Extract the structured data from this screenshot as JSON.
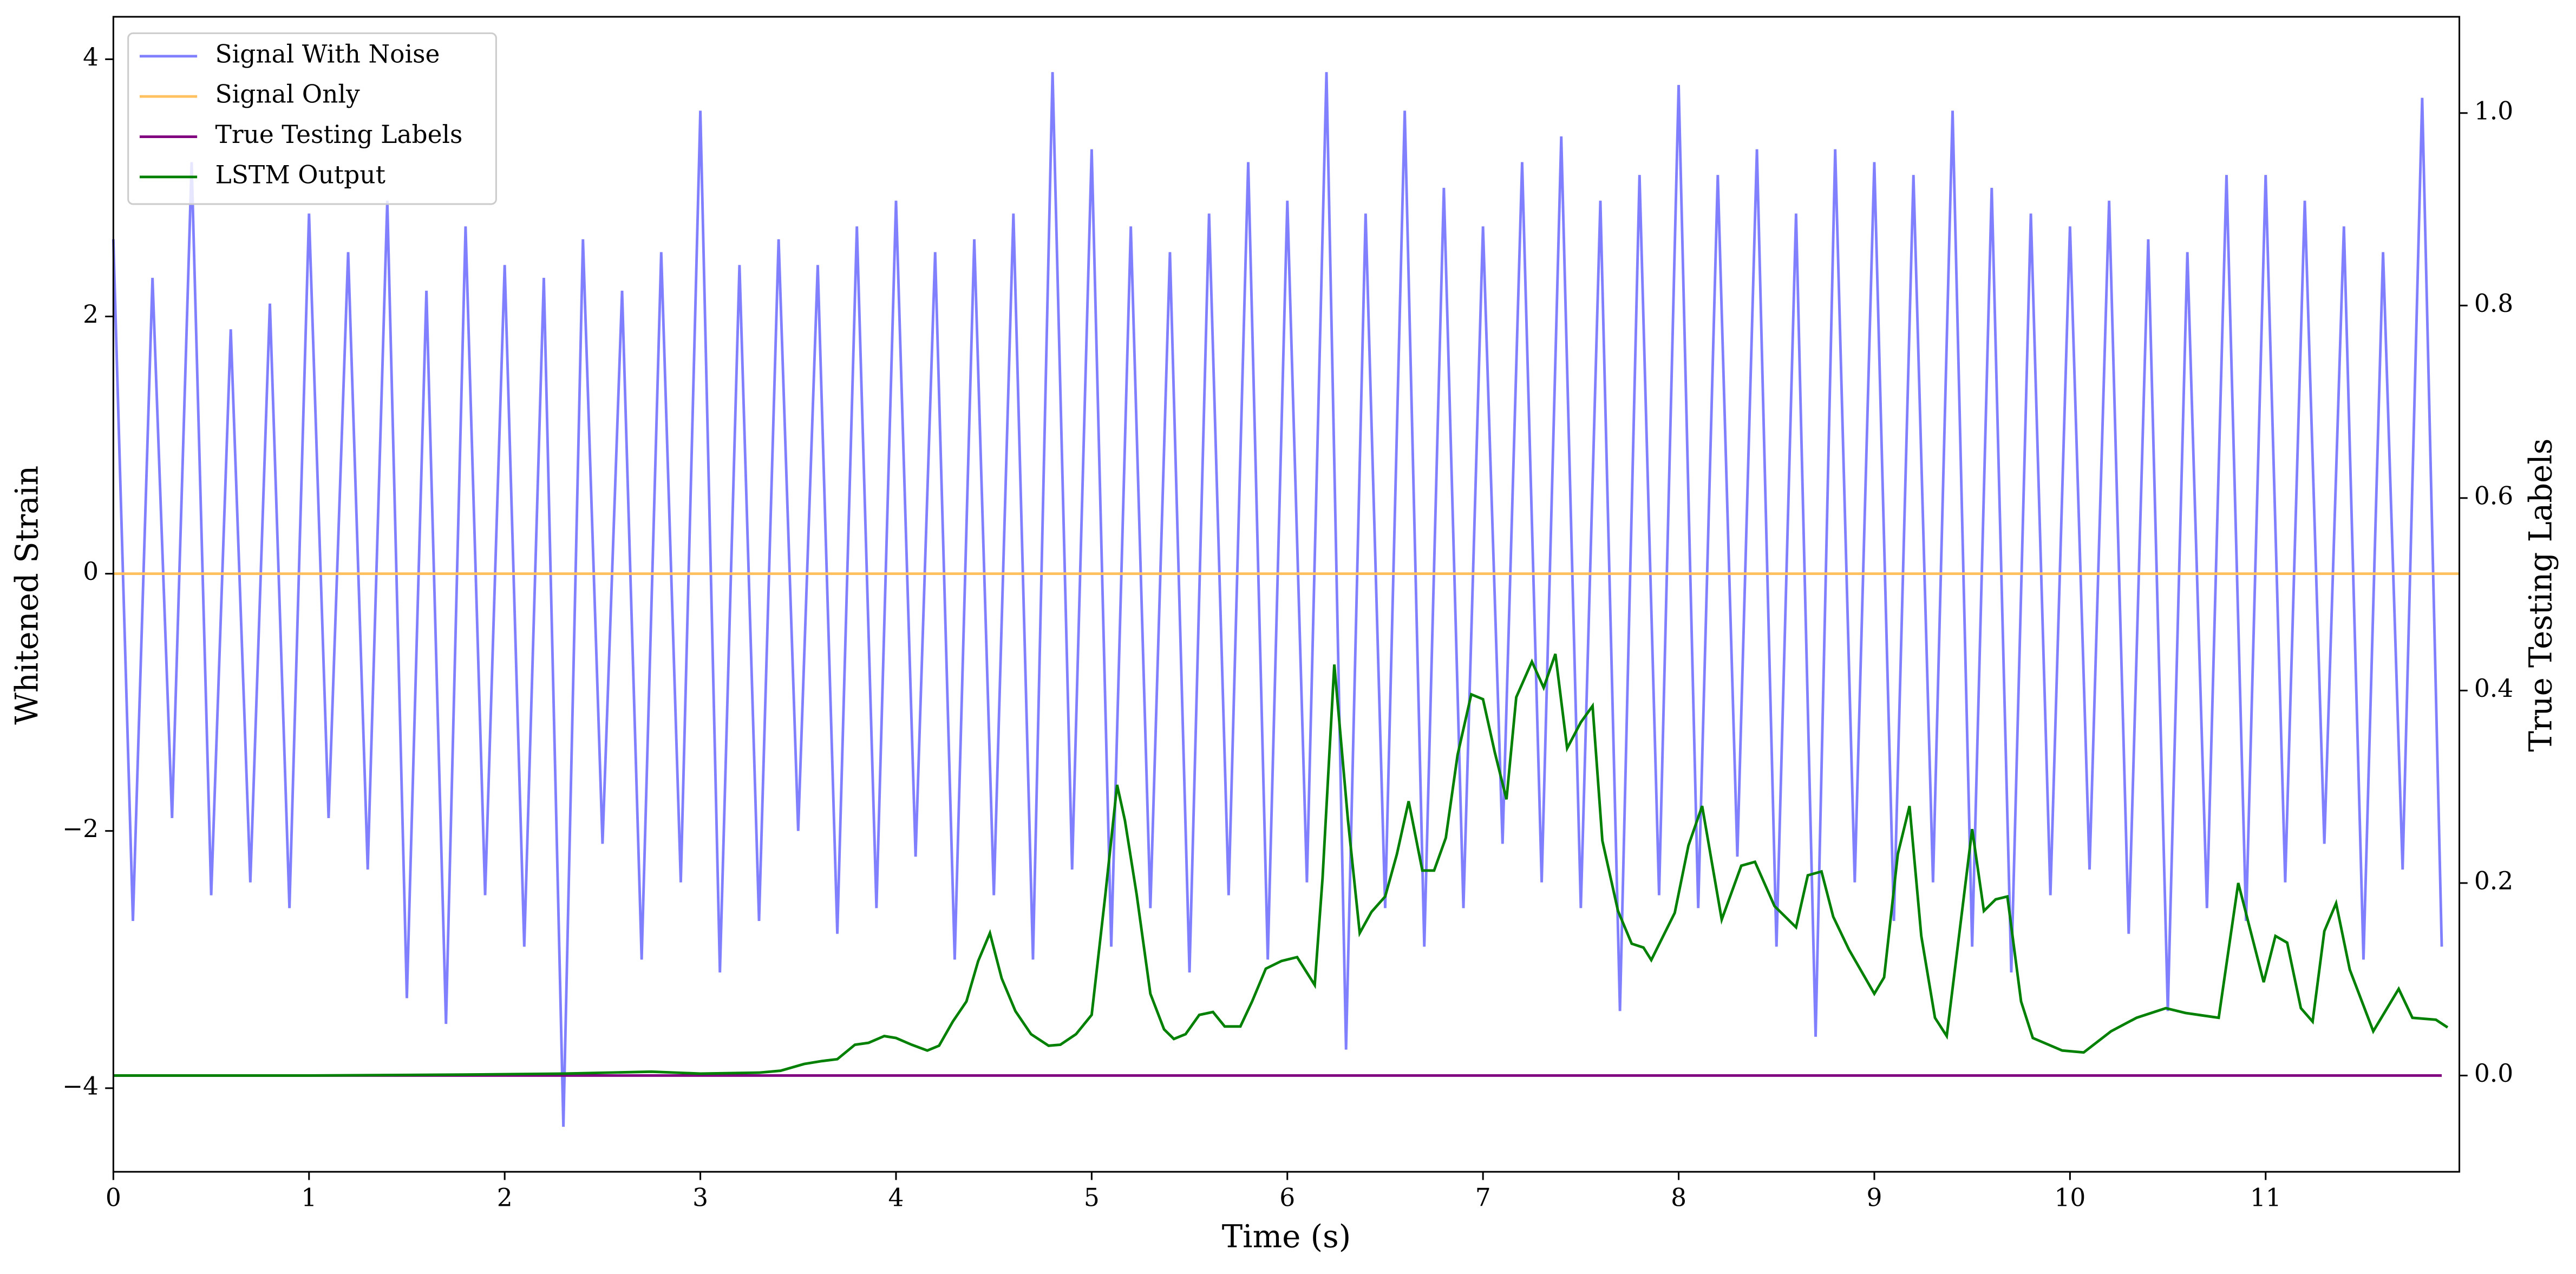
{
  "chart_data": {
    "type": "line",
    "xlabel": "Time (s)",
    "ylabel": "Whitened Strain",
    "y2label": "True Testing Labels",
    "xlim": [
      0,
      11.99
    ],
    "xticks": [
      0,
      1,
      2,
      3,
      4,
      5,
      6,
      7,
      8,
      9,
      10,
      11
    ],
    "ylim": [
      -4.65,
      4.33
    ],
    "yticks": [
      {
        "value": -4,
        "label": "−4"
      },
      {
        "value": -2,
        "label": "−2"
      },
      0,
      2,
      4
    ],
    "y2lim": [
      -0.1,
      1.1
    ],
    "y2ticks": [
      {
        "value": 0,
        "label": "0.0"
      },
      {
        "value": 0.2,
        "label": "0.2"
      },
      {
        "value": 0.4,
        "label": "0.4"
      },
      {
        "value": 0.6,
        "label": "0.6"
      },
      {
        "value": 0.8,
        "label": "0.8"
      },
      {
        "value": 1,
        "label": "1.0"
      }
    ],
    "legend": "upper left",
    "series": [
      {
        "name": "Signal With Noise",
        "color": "#8080ff",
        "x": [
          0,
          0.1,
          0.2,
          0.3,
          0.4,
          0.5,
          0.6,
          0.7,
          0.8,
          0.9,
          1,
          1.1,
          1.2,
          1.3,
          1.4,
          1.5,
          1.6,
          1.7,
          1.8,
          1.9,
          2,
          2.1,
          2.2,
          2.3,
          2.4,
          2.5,
          2.6,
          2.7,
          2.8,
          2.9,
          3,
          3.1,
          3.2,
          3.3,
          3.4,
          3.5,
          3.6,
          3.7,
          3.8,
          3.9,
          4,
          4.1,
          4.2,
          4.3,
          4.4,
          4.5,
          4.6,
          4.7,
          4.8,
          4.9,
          5,
          5.1,
          5.2,
          5.3,
          5.4,
          5.5,
          5.6,
          5.7,
          5.8,
          5.9,
          6,
          6.1,
          6.2,
          6.3,
          6.4,
          6.5,
          6.6,
          6.7,
          6.8,
          6.9,
          7,
          7.1,
          7.2,
          7.3,
          7.4,
          7.5,
          7.6,
          7.7,
          7.8,
          7.9,
          8,
          8.1,
          8.2,
          8.3,
          8.4,
          8.5,
          8.6,
          8.7,
          8.8,
          8.9,
          9,
          9.1,
          9.2,
          9.3,
          9.4,
          9.5,
          9.6,
          9.7,
          9.8,
          9.9,
          10,
          10.1,
          10.2,
          10.3,
          10.4,
          10.5,
          10.6,
          10.7,
          10.8,
          10.9,
          11,
          11.1,
          11.2,
          11.3,
          11.4,
          11.5,
          11.6,
          11.7,
          11.8,
          11.9
        ],
        "values": [
          2.6,
          -2.7,
          2.3,
          -1.9,
          3.2,
          -2.5,
          1.9,
          -2.4,
          2.1,
          -2.6,
          2.8,
          -1.9,
          2.5,
          -2.3,
          2.9,
          -3.3,
          2.2,
          -3.5,
          2.7,
          -2.5,
          2.4,
          -2.9,
          2.3,
          -4.3,
          2.6,
          -2.1,
          2.2,
          -3.0,
          2.5,
          -2.4,
          3.6,
          -3.1,
          2.4,
          -2.7,
          2.6,
          -2.0,
          2.4,
          -2.8,
          2.7,
          -2.6,
          2.9,
          -2.2,
          2.5,
          -3.0,
          2.6,
          -2.5,
          2.8,
          -3.0,
          3.9,
          -2.3,
          3.3,
          -2.9,
          2.7,
          -2.6,
          2.5,
          -3.1,
          2.8,
          -2.5,
          3.2,
          -3.0,
          2.9,
          -2.4,
          3.9,
          -3.7,
          2.8,
          -2.6,
          3.6,
          -2.9,
          3.0,
          -2.6,
          2.7,
          -2.1,
          3.2,
          -2.4,
          3.4,
          -2.6,
          2.9,
          -3.4,
          3.1,
          -2.5,
          3.8,
          -2.6,
          3.1,
          -2.2,
          3.3,
          -2.9,
          2.8,
          -3.6,
          3.3,
          -2.4,
          3.2,
          -2.7,
          3.1,
          -2.4,
          3.6,
          -2.9,
          3.0,
          -3.1,
          2.8,
          -2.5,
          2.7,
          -2.3,
          2.9,
          -2.8,
          2.6,
          -3.4,
          2.5,
          -2.6,
          3.1,
          -2.7,
          3.1,
          -2.4,
          2.9,
          -2.1,
          2.7,
          -3.0,
          2.5,
          -2.3,
          3.7,
          -2.9
        ]
      },
      {
        "name": "Signal Only",
        "color": "#ffc060",
        "x": [
          0,
          11.99
        ],
        "values": [
          0,
          0
        ]
      },
      {
        "name": "True Testing Labels",
        "color": "#800080",
        "axis": "y2",
        "x": [
          0,
          11.9
        ],
        "values": [
          0,
          0
        ]
      },
      {
        "name": "LSTM Output",
        "color": "#008000",
        "axis": "y2",
        "x": [
          0,
          1.0,
          1.8,
          2.3,
          2.75,
          3.0,
          3.3,
          3.41,
          3.53,
          3.62,
          3.7,
          3.79,
          3.86,
          3.94,
          4.0,
          4.08,
          4.16,
          4.22,
          4.29,
          4.36,
          4.42,
          4.48,
          4.54,
          4.61,
          4.69,
          4.78,
          4.84,
          4.92,
          5.0,
          5.07,
          5.13,
          5.17,
          5.23,
          5.3,
          5.37,
          5.42,
          5.48,
          5.55,
          5.62,
          5.68,
          5.76,
          5.82,
          5.89,
          5.97,
          6.05,
          6.14,
          6.18,
          6.24,
          6.31,
          6.37,
          6.43,
          6.5,
          6.56,
          6.62,
          6.69,
          6.75,
          6.81,
          6.87,
          6.94,
          7.0,
          7.06,
          7.12,
          7.17,
          7.25,
          7.31,
          7.37,
          7.43,
          7.5,
          7.56,
          7.61,
          7.69,
          7.76,
          7.82,
          7.86,
          7.98,
          8.05,
          8.12,
          8.22,
          8.32,
          8.39,
          8.49,
          8.6,
          8.66,
          8.73,
          8.79,
          8.87,
          9.0,
          9.05,
          9.12,
          9.18,
          9.24,
          9.31,
          9.37,
          9.5,
          9.56,
          9.62,
          9.68,
          9.75,
          9.81,
          9.96,
          10.07,
          10.21,
          10.34,
          10.49,
          10.59,
          10.76,
          10.86,
          10.99,
          11.05,
          11.11,
          11.18,
          11.24,
          11.3,
          11.36,
          11.43,
          11.55,
          11.68,
          11.75,
          11.87,
          11.93
        ],
        "values": [
          0,
          0,
          0.001,
          0.002,
          0.004,
          0.002,
          0.003,
          0.005,
          0.012,
          0.015,
          0.017,
          0.032,
          0.034,
          0.041,
          0.039,
          0.032,
          0.026,
          0.031,
          0.056,
          0.077,
          0.119,
          0.148,
          0.101,
          0.067,
          0.043,
          0.031,
          0.032,
          0.043,
          0.063,
          0.188,
          0.302,
          0.265,
          0.188,
          0.085,
          0.048,
          0.038,
          0.043,
          0.063,
          0.066,
          0.051,
          0.051,
          0.077,
          0.111,
          0.119,
          0.123,
          0.094,
          0.205,
          0.427,
          0.265,
          0.148,
          0.17,
          0.186,
          0.23,
          0.285,
          0.213,
          0.213,
          0.247,
          0.333,
          0.396,
          0.391,
          0.336,
          0.287,
          0.393,
          0.43,
          0.403,
          0.438,
          0.34,
          0.367,
          0.384,
          0.244,
          0.171,
          0.137,
          0.133,
          0.12,
          0.169,
          0.239,
          0.28,
          0.162,
          0.218,
          0.222,
          0.176,
          0.154,
          0.208,
          0.212,
          0.165,
          0.131,
          0.085,
          0.102,
          0.23,
          0.28,
          0.145,
          0.06,
          0.041,
          0.256,
          0.171,
          0.183,
          0.186,
          0.077,
          0.039,
          0.026,
          0.024,
          0.046,
          0.06,
          0.07,
          0.065,
          0.06,
          0.2,
          0.097,
          0.145,
          0.138,
          0.07,
          0.056,
          0.15,
          0.179,
          0.11,
          0.046,
          0.09,
          0.06,
          0.058,
          0.05
        ]
      }
    ]
  }
}
